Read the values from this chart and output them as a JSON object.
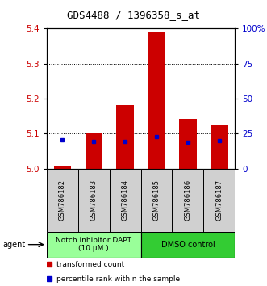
{
  "title": "GDS4488 / 1396358_s_at",
  "samples": [
    "GSM786182",
    "GSM786183",
    "GSM786184",
    "GSM786185",
    "GSM786186",
    "GSM786187"
  ],
  "bar_bottoms": [
    5.0,
    5.0,
    5.0,
    5.0,
    5.0,
    5.0
  ],
  "bar_tops": [
    5.007,
    5.1,
    5.183,
    5.39,
    5.143,
    5.125
  ],
  "blue_y": [
    5.082,
    5.078,
    5.078,
    5.093,
    5.076,
    5.08
  ],
  "ylim": [
    5.0,
    5.4
  ],
  "yticks_left": [
    5.0,
    5.1,
    5.2,
    5.3,
    5.4
  ],
  "yticks_right_pct": [
    0,
    25,
    50,
    75,
    100
  ],
  "yticks_right_labels": [
    "0",
    "25",
    "50",
    "75",
    "100%"
  ],
  "bar_color": "#cc0000",
  "blue_color": "#0000cc",
  "group1_label": "Notch inhibitor DAPT\n(10 μM.)",
  "group2_label": "DMSO control",
  "group1_color": "#99ff99",
  "group2_color": "#33cc33",
  "agent_label": "agent",
  "legend1": "transformed count",
  "legend2": "percentile rank within the sample",
  "bar_width": 0.55,
  "ylabel_left_color": "#cc0000",
  "ylabel_right_color": "#0000cc",
  "gray_color": "#d0d0d0"
}
